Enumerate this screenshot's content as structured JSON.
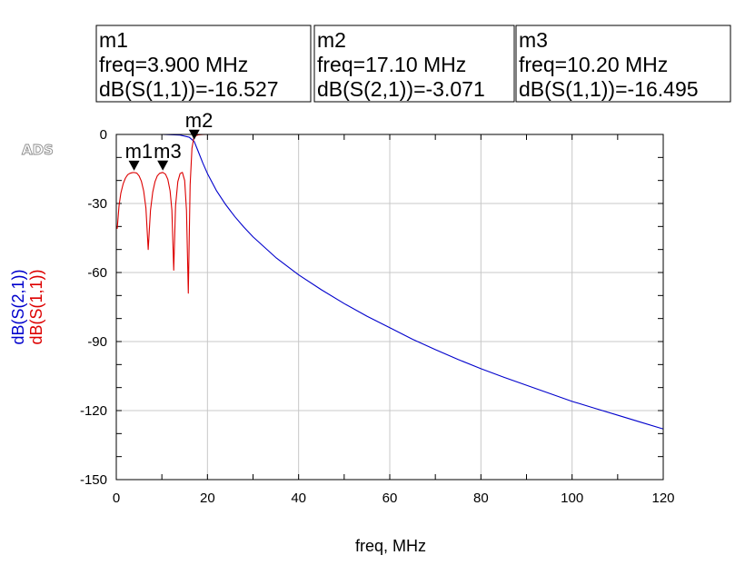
{
  "watermark": "ADS",
  "colors": {
    "s21": "#0000cc",
    "s11": "#dd0000",
    "grid": "#c8c8c8",
    "axis": "#000000"
  },
  "marker_boxes": [
    {
      "name": "m1",
      "freq": "freq=3.900 MHz",
      "value": "dB(S(1,1))=-16.527"
    },
    {
      "name": "m2",
      "freq": "freq=17.10 MHz",
      "value": "dB(S(2,1))=-3.071"
    },
    {
      "name": "m3",
      "freq": "freq=10.20 MHz",
      "value": "dB(S(1,1))=-16.495"
    }
  ],
  "chart_data": {
    "type": "line",
    "xlabel": "freq, MHz",
    "ylabels": [
      "dB(S(2,1))",
      "dB(S(1,1))"
    ],
    "xlim": [
      0,
      120
    ],
    "ylim": [
      -150,
      0
    ],
    "xticks": [
      0,
      20,
      40,
      60,
      80,
      100,
      120
    ],
    "yticks": [
      0,
      -30,
      -60,
      -90,
      -120,
      -150
    ],
    "grid": true,
    "series": [
      {
        "name": "dB(S(2,1))",
        "color": "#0000cc",
        "x": [
          0,
          5,
          10,
          14,
          16,
          17.1,
          18,
          19,
          20,
          22,
          24,
          26,
          28,
          30,
          35,
          40,
          45,
          50,
          55,
          60,
          65,
          70,
          75,
          80,
          85,
          90,
          95,
          100,
          105,
          110,
          115,
          120
        ],
        "y": [
          0,
          0,
          0,
          -0.3,
          -1.2,
          -3.071,
          -7.5,
          -12.5,
          -17,
          -24.5,
          -30.5,
          -35.7,
          -40.3,
          -44.5,
          -53.5,
          -61,
          -67.5,
          -73.5,
          -79,
          -84,
          -89,
          -93.5,
          -97.8,
          -101.8,
          -105.5,
          -109,
          -112.5,
          -116,
          -119,
          -122,
          -125,
          -128
        ]
      },
      {
        "name": "dB(S(1,1))",
        "color": "#dd0000",
        "x": [
          0.2,
          0.6,
          1,
          1.5,
          2,
          2.5,
          3,
          3.5,
          3.9,
          4.5,
          5,
          5.5,
          6,
          6.5,
          7,
          7.5,
          8,
          8.5,
          9,
          9.5,
          10.2,
          10.8,
          11.3,
          11.8,
          12.2,
          12.6,
          13,
          13.5,
          14,
          14.5,
          15,
          15.4,
          15.8,
          16.2,
          16.6,
          17,
          17.5,
          18,
          19,
          20,
          30,
          60,
          90,
          120
        ],
        "y": [
          -41,
          -31,
          -25.5,
          -21.5,
          -19,
          -17.5,
          -16.9,
          -16.6,
          -16.527,
          -16.8,
          -18,
          -20.3,
          -24.5,
          -32,
          -50,
          -33,
          -25,
          -20.5,
          -18,
          -16.9,
          -16.495,
          -17.3,
          -19.5,
          -24.5,
          -33,
          -59,
          -31,
          -20.5,
          -17,
          -16.5,
          -20,
          -33,
          -69,
          -22,
          -6,
          -1.5,
          -0.5,
          -0.2,
          -0.05,
          0,
          0,
          0,
          0,
          0
        ]
      }
    ],
    "markers": [
      {
        "name": "m1",
        "x": 3.9,
        "y": -16.527,
        "series": "dB(S(1,1))"
      },
      {
        "name": "m2",
        "x": 17.1,
        "y": -3.071,
        "series": "dB(S(2,1))"
      },
      {
        "name": "m3",
        "x": 10.2,
        "y": -16.495,
        "series": "dB(S(1,1))"
      }
    ]
  }
}
